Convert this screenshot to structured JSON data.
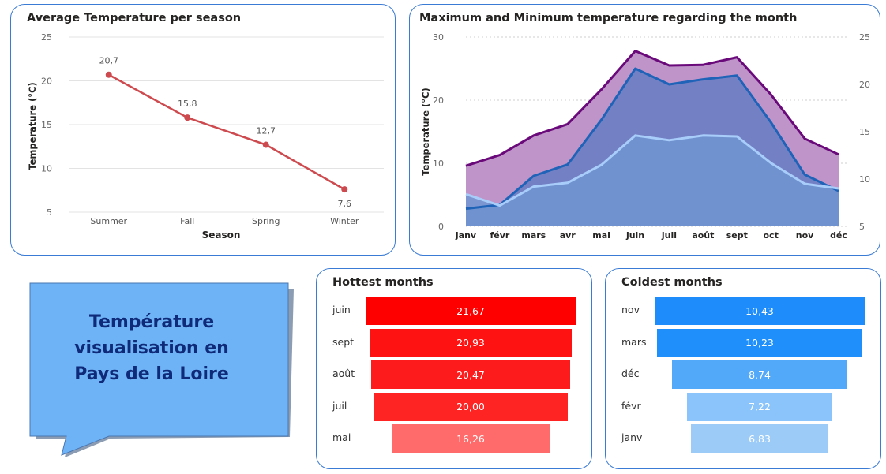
{
  "colors": {
    "card_border": "#3a7bd5",
    "season_line": "#cd4a4f",
    "max_line": "#6a0a7a",
    "max_area": "#bf95c9",
    "avg_line": "#1f63b8",
    "avg_area": "#7381c4",
    "min_line": "#a9cdfa",
    "min_area": "#7096d2",
    "callout_fill": "#6fb3f7",
    "callout_text": "#0f2a78",
    "hot_bars": [
      "#ff0000",
      "#fe1212",
      "#fe1b1b",
      "#fe2424",
      "#ff6b6b"
    ],
    "cold_bars": [
      "#1e8dfb",
      "#1f8ffb",
      "#52a8f9",
      "#8bc4fa",
      "#9ccbf8"
    ]
  },
  "callout": {
    "lines": [
      "Température",
      "visualisation en",
      "Pays de la Loire"
    ]
  },
  "chart_data": [
    {
      "type": "line",
      "title": "Average Temperature per season",
      "xlabel": "Season",
      "ylabel": "Temperature (°C)",
      "categories": [
        "Summer",
        "Fall",
        "Spring",
        "Winter"
      ],
      "values": [
        20.7,
        15.8,
        12.7,
        7.6
      ],
      "data_labels": [
        "20,7",
        "15,8",
        "12,7",
        "7,6"
      ],
      "ylim": [
        5,
        25
      ],
      "yticks": [
        5,
        10,
        15,
        20,
        25
      ],
      "grid": true
    },
    {
      "type": "area",
      "title": "Maximum and Minimum temperature regarding the month",
      "ylabel": "Temperature (°C)",
      "categories": [
        "janv",
        "févr",
        "mars",
        "avr",
        "mai",
        "juin",
        "juil",
        "août",
        "sept",
        "oct",
        "nov",
        "déc"
      ],
      "ylim": [
        0,
        30
      ],
      "yticks": [
        0,
        10,
        20,
        30
      ],
      "secondary_ylim": [
        5,
        25
      ],
      "secondary_yticks": [
        5,
        10,
        15,
        20,
        25
      ],
      "grid": true,
      "series": [
        {
          "axis": "left",
          "values": [
            9.6,
            11.3,
            14.4,
            16.2,
            21.7,
            27.8,
            25.5,
            25.6,
            26.8,
            20.9,
            13.9,
            11.4
          ]
        },
        {
          "axis": "left",
          "values": [
            2.8,
            3.4,
            8.0,
            9.8,
            16.9,
            25.0,
            22.5,
            23.3,
            23.9,
            16.5,
            8.2,
            5.6
          ]
        },
        {
          "axis": "right",
          "values": [
            8.4,
            7.2,
            9.2,
            9.6,
            11.5,
            14.6,
            14.1,
            14.6,
            14.5,
            11.7,
            9.5,
            9.0
          ]
        }
      ]
    },
    {
      "type": "bar",
      "orientation": "funnel",
      "title": "Hottest months",
      "categories": [
        "juin",
        "sept",
        "août",
        "juil",
        "mai"
      ],
      "values": [
        21.67,
        20.93,
        20.47,
        20.0,
        16.26
      ],
      "data_labels": [
        "21,67",
        "20,93",
        "20,47",
        "20,00",
        "16,26"
      ]
    },
    {
      "type": "bar",
      "orientation": "funnel",
      "title": "Coldest months",
      "categories": [
        "nov",
        "mars",
        "déc",
        "févr",
        "janv"
      ],
      "values": [
        10.43,
        10.23,
        8.74,
        7.22,
        6.83
      ],
      "data_labels": [
        "10,43",
        "10,23",
        "8,74",
        "7,22",
        "6,83"
      ]
    }
  ]
}
